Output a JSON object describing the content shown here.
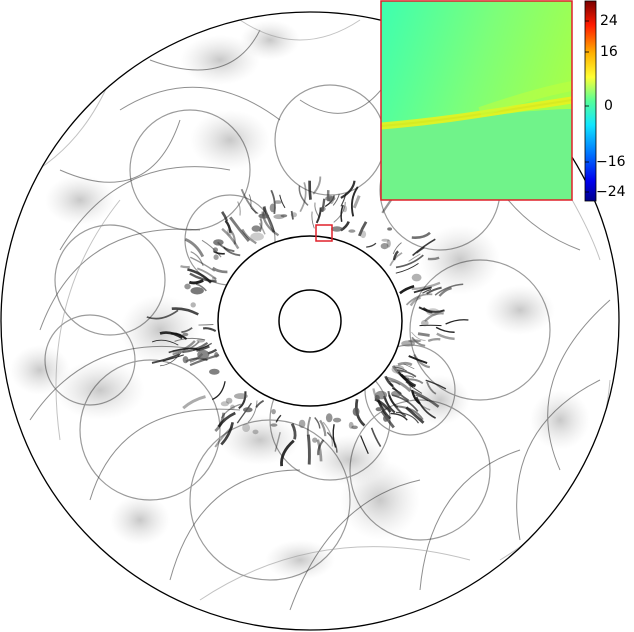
{
  "colorbar": {
    "tick_labels": [
      "24",
      "16",
      "0",
      "−16",
      "−24"
    ],
    "colors": [
      "#7a0000",
      "#ff2a00",
      "#ffd500",
      "#ffff33",
      "#aaff55",
      "#55ff99",
      "#22ffdd",
      "#00aaff",
      "#0055ff",
      "#0000cc",
      "#00008b"
    ]
  },
  "inset": {
    "background_top_left": "#3dffb0",
    "background_top_right": "#a4ff4c",
    "band_color": "#e8f21e",
    "lower_color": "#70f38a",
    "frame_color": "#e0202a"
  },
  "zoom_box_color": "#e0202a"
}
